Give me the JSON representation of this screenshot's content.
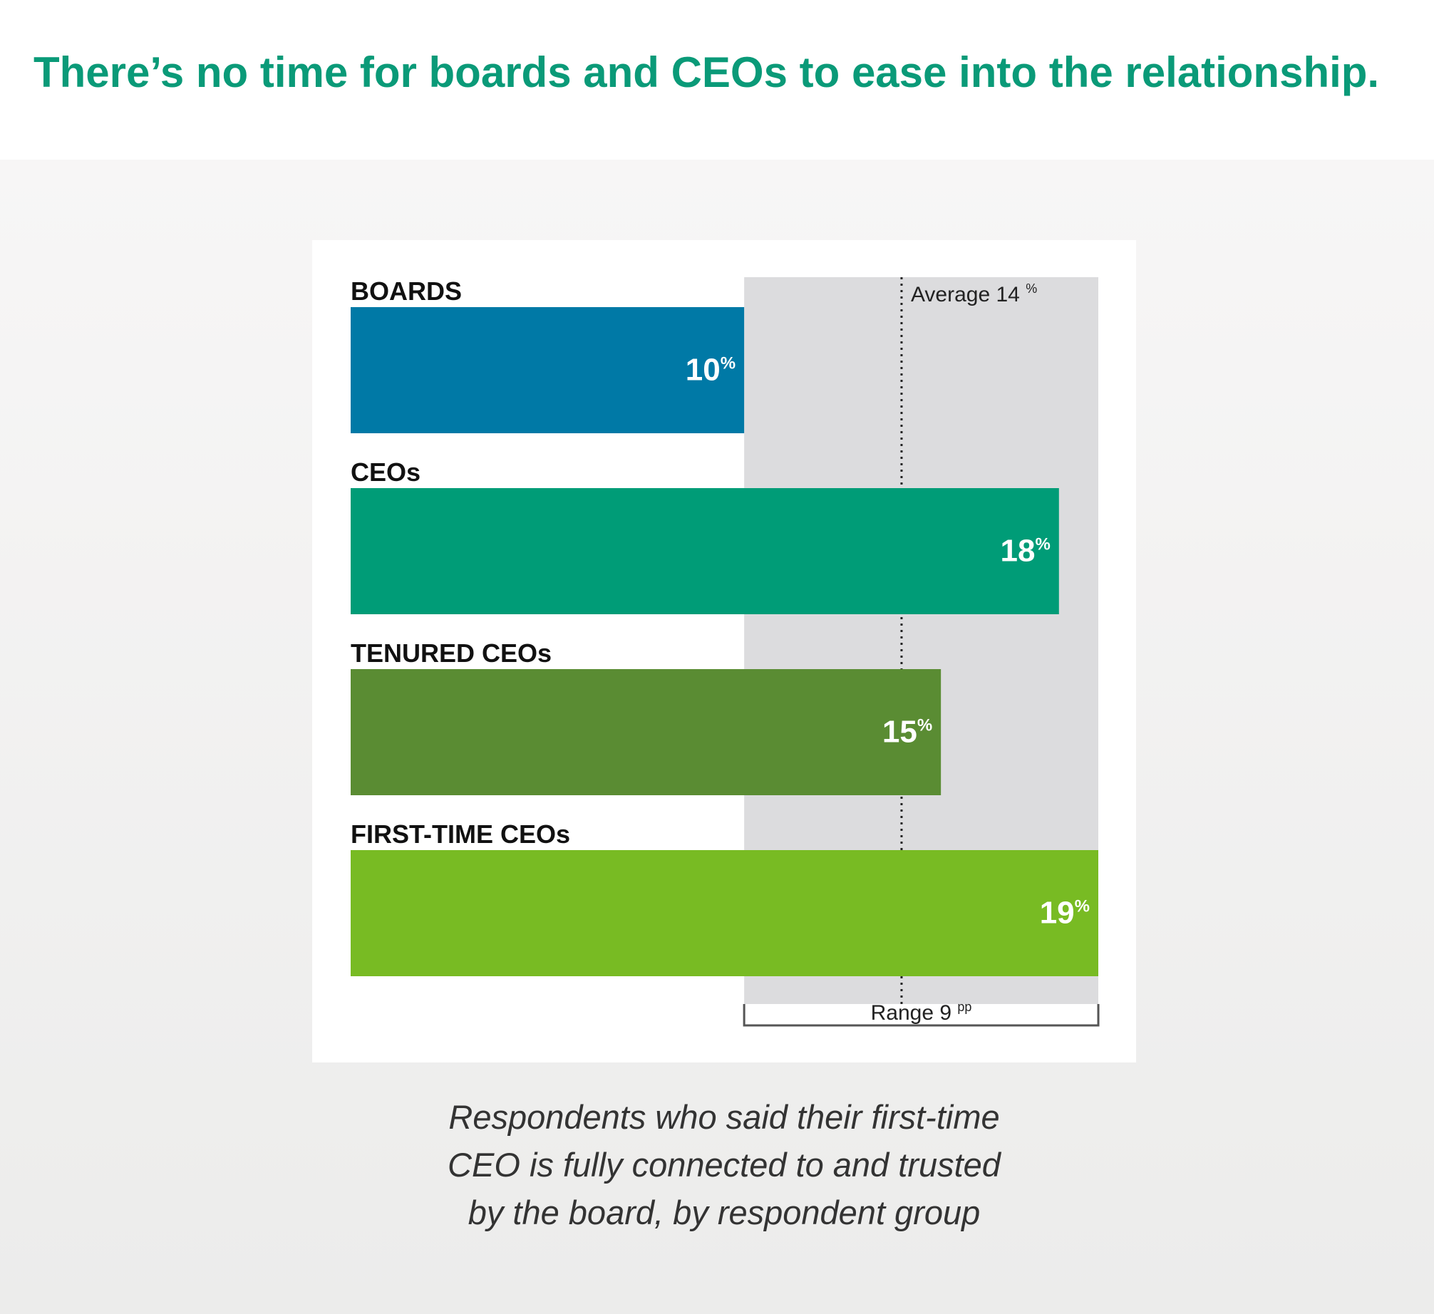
{
  "page": {
    "headline": "There’s no time for boards and CEOs to ease into the relationship.",
    "caption_lines": [
      "Respondents who said their first-time",
      "CEO is fully connected to and trusted",
      "by the board, by respondent group"
    ]
  },
  "colors": {
    "headline": "#0a9a78",
    "range_band": "#dcdcde",
    "label_text": "#111111",
    "value_text": "#ffffff"
  },
  "chart_data": {
    "type": "bar",
    "orientation": "horizontal",
    "unit": "%",
    "categories": [
      "BOARDS",
      "CEOs",
      "TENURED CEOs",
      "FIRST-TIME CEOs"
    ],
    "values": [
      10,
      18,
      15,
      19
    ],
    "value_labels": [
      "10",
      "18",
      "15",
      "19"
    ],
    "bar_colors": [
      "#0079a6",
      "#009c77",
      "#5a8c33",
      "#78bb23"
    ],
    "average": {
      "value": 14,
      "label": "Average 14",
      "unit": "%"
    },
    "range": {
      "from": 10,
      "to": 19,
      "label": "Range 9",
      "unit": "pp"
    },
    "xlim": [
      0,
      19
    ],
    "grid": false,
    "legend": "none"
  }
}
